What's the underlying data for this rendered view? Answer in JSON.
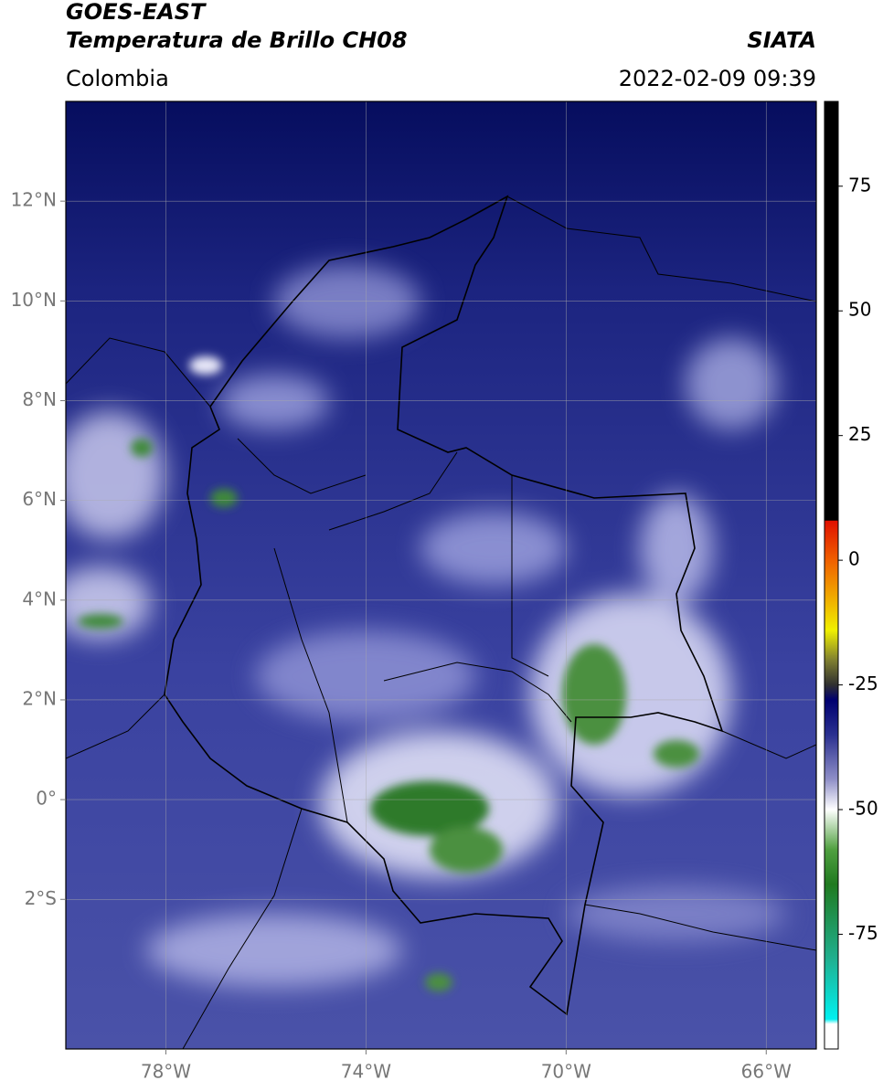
{
  "header": {
    "title_line1": "GOES-EAST",
    "title_line2": "Temperatura de Brillo CH08",
    "source": "SIATA",
    "region": "Colombia",
    "timestamp": "2022-02-09 09:39"
  },
  "map": {
    "xlim": [
      -80,
      -65
    ],
    "ylim": [
      -5,
      14
    ],
    "xticks": [
      {
        "value": -78,
        "label": "78°W"
      },
      {
        "value": -74,
        "label": "74°W"
      },
      {
        "value": -70,
        "label": "70°W"
      },
      {
        "value": -66,
        "label": "66°W"
      }
    ],
    "yticks": [
      {
        "value": 12,
        "label": "12°N"
      },
      {
        "value": 10,
        "label": "10°N"
      },
      {
        "value": 8,
        "label": "8°N"
      },
      {
        "value": 6,
        "label": "6°N"
      },
      {
        "value": 4,
        "label": "4°N"
      },
      {
        "value": 2,
        "label": "2°N"
      },
      {
        "value": 0,
        "label": "0°"
      },
      {
        "value": -2,
        "label": "2°S"
      }
    ],
    "grid": true
  },
  "colorbar": {
    "lim": [
      -98,
      92
    ],
    "ticks": [
      75,
      50,
      25,
      0,
      -25,
      -50,
      -75
    ],
    "stops": [
      {
        "value": 92,
        "color": "#000000"
      },
      {
        "value": 8,
        "color": "#000000"
      },
      {
        "value": 7.9,
        "color": "#e01000"
      },
      {
        "value": 0,
        "color": "#f06000"
      },
      {
        "value": -8,
        "color": "#f0b000"
      },
      {
        "value": -14,
        "color": "#f0f000"
      },
      {
        "value": -20,
        "color": "#808030"
      },
      {
        "value": -25,
        "color": "#303030"
      },
      {
        "value": -28,
        "color": "#000070"
      },
      {
        "value": -35,
        "color": "#2a3090"
      },
      {
        "value": -44,
        "color": "#9090c8"
      },
      {
        "value": -50,
        "color": "#ffffff"
      },
      {
        "value": -58,
        "color": "#50a040"
      },
      {
        "value": -65,
        "color": "#207a20"
      },
      {
        "value": -80,
        "color": "#20b090"
      },
      {
        "value": -92,
        "color": "#00f0f0"
      },
      {
        "value": -93,
        "color": "#ffffff"
      },
      {
        "value": -98,
        "color": "#ffffff"
      }
    ]
  }
}
